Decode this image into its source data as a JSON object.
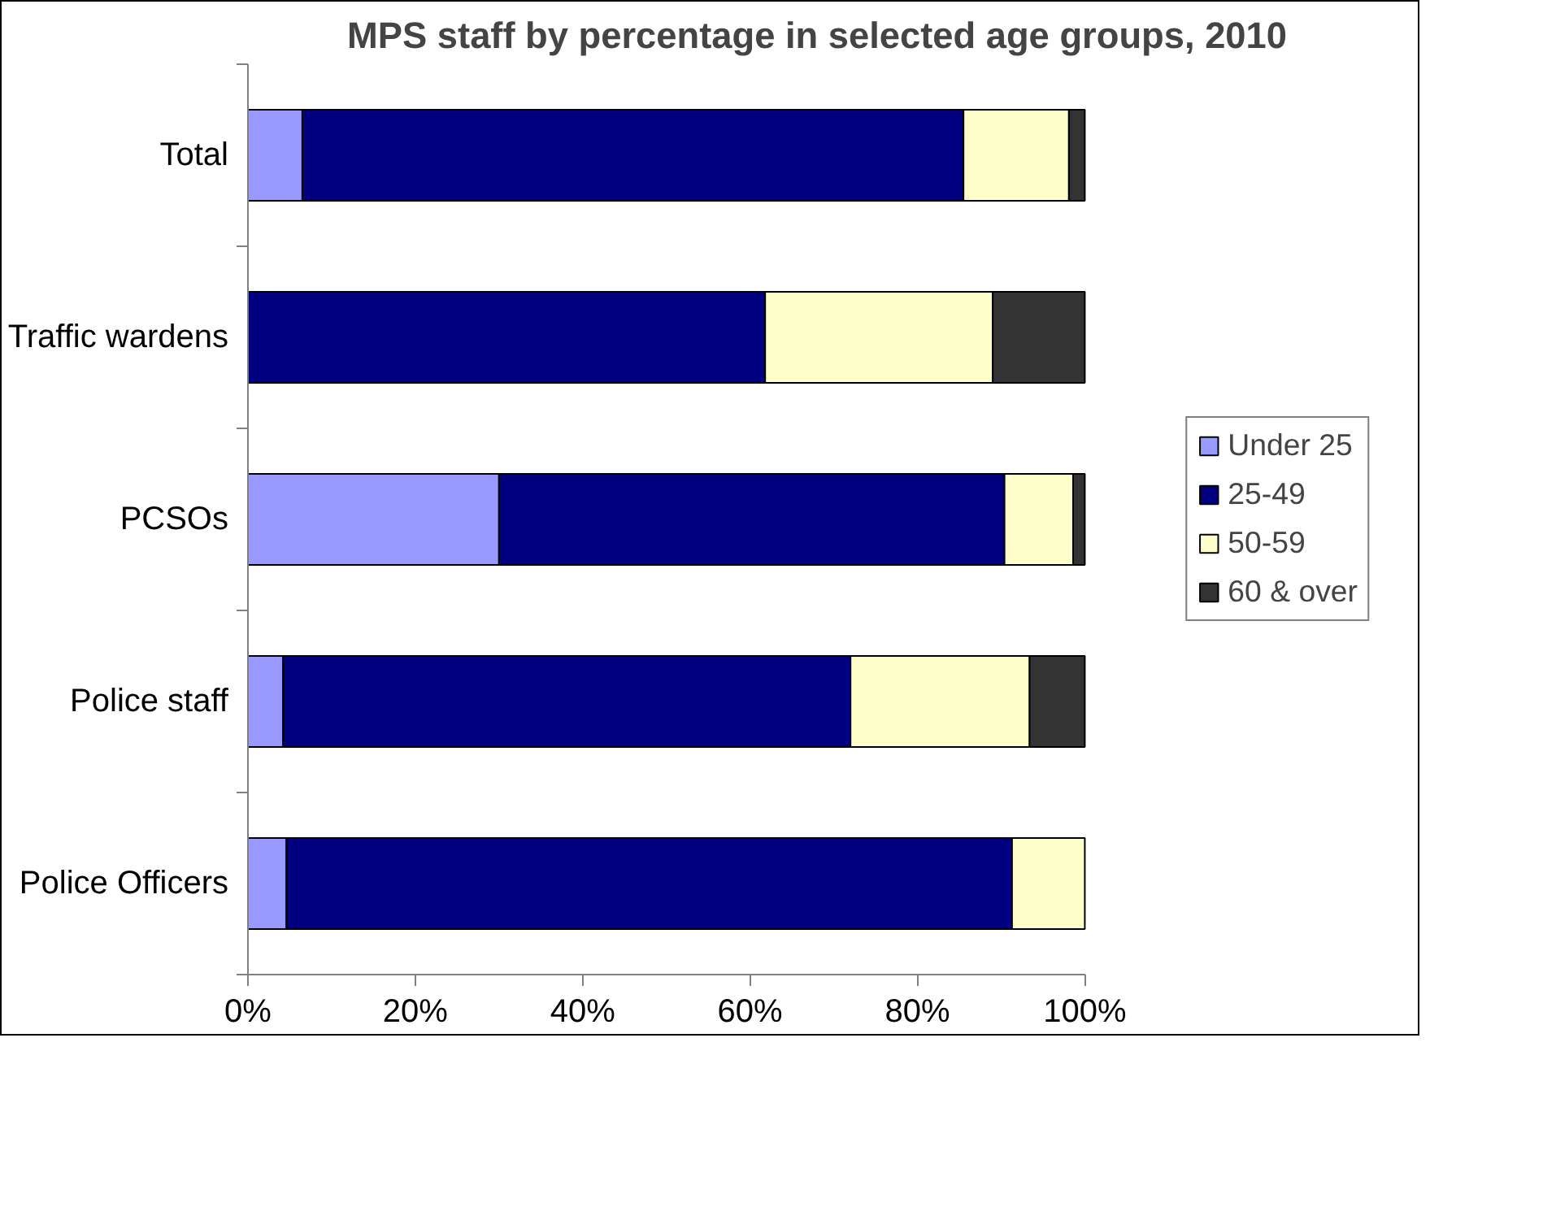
{
  "chart_data": {
    "type": "bar",
    "orientation": "horizontal",
    "stacked": true,
    "title": "MPS staff by percentage in selected age groups, 2010",
    "categories": [
      "Total",
      "Traffic wardens",
      "PCSOs",
      "Police staff",
      "Police Officers"
    ],
    "series": [
      {
        "name": "Under 25",
        "color": "#9999ff",
        "values": [
          6.5,
          null,
          30,
          4.2,
          4.6
        ]
      },
      {
        "name": "25-49",
        "color": "#000080",
        "values": [
          79,
          61.8,
          60.4,
          67.8,
          86.7
        ]
      },
      {
        "name": "50-59",
        "color": "#ffffcc",
        "values": [
          12.6,
          27.2,
          8.2,
          21.4,
          8.7
        ]
      },
      {
        "name": "60 & over",
        "color": "#333333",
        "values": [
          1.9,
          11,
          1.4,
          6.6,
          0
        ]
      }
    ],
    "xlim": [
      0,
      100
    ],
    "xticks": [
      {
        "value": 0,
        "label": "0%"
      },
      {
        "value": 20,
        "label": "20%"
      },
      {
        "value": 40,
        "label": "40%"
      },
      {
        "value": 60,
        "label": "60%"
      },
      {
        "value": 80,
        "label": "80%"
      },
      {
        "value": 100,
        "label": "100%"
      }
    ],
    "legend": "right",
    "grid": false
  }
}
